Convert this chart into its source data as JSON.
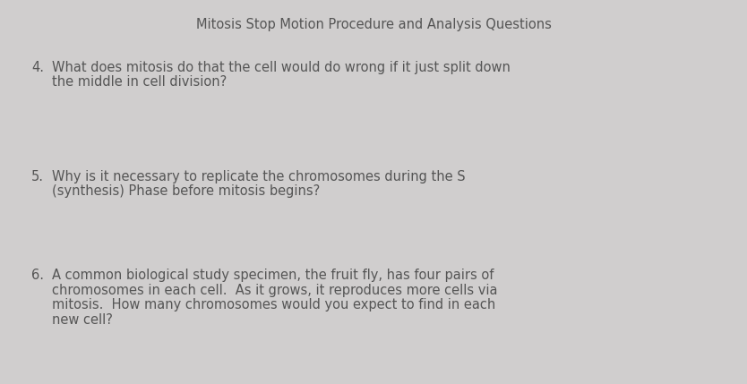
{
  "background_color": "#d0cece",
  "title": "Mitosis Stop Motion Procedure and Analysis Questions",
  "title_fontsize": 10.5,
  "title_color": "#555555",
  "questions": [
    {
      "number": "4.",
      "lines": [
        "What does mitosis do that the cell would do wrong if it just split down",
        "the middle in cell division?"
      ]
    },
    {
      "number": "5.",
      "lines": [
        "Why is it necessary to replicate the chromosomes during the S",
        "(synthesis) Phase before mitosis begins?"
      ]
    },
    {
      "number": "6.",
      "lines": [
        "A common biological study specimen, the fruit fly, has four pairs of",
        "chromosomes in each cell.  As it grows, it reproduces more cells via",
        "mitosis.  How many chromosomes would you expect to find in each",
        "new cell?"
      ]
    }
  ],
  "text_fontsize": 10.5,
  "text_color": "#555555",
  "fig_width": 8.34,
  "fig_height": 4.29,
  "dpi": 100
}
